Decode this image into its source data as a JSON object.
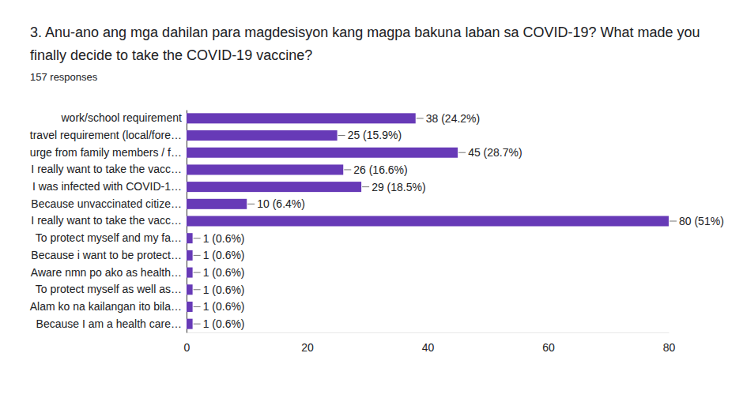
{
  "chart_data": {
    "type": "bar",
    "orientation": "horizontal",
    "title": "3. Anu-ano ang mga dahilan para magdesisyon kang magpa bakuna laban sa COVID-19? What made you finally decide to take the COVID-19 vaccine?",
    "subtitle": "157 responses",
    "categories": [
      "work/school requirement",
      "travel requirement (local/fore…",
      "urge from family members / f…",
      "I really want to take the vacc…",
      "I was infected with COVID-1…",
      "Because unvaccinated citize…",
      "I really want to take the vacc…",
      "To protect myself and my fa…",
      "Because i want to be protect…",
      "Aware nmn po ako as health…",
      "To protect myself as well as…",
      "Alam ko na kailangan ito bila…",
      "Because I am a health care…"
    ],
    "values": [
      38,
      25,
      45,
      26,
      29,
      10,
      80,
      1,
      1,
      1,
      1,
      1,
      1
    ],
    "value_labels": [
      "38 (24.2%)",
      "25 (15.9%)",
      "45 (28.7%)",
      "26 (16.6%)",
      "29 (18.5%)",
      "10 (6.4%)",
      "80 (51%)",
      "1 (0.6%)",
      "1 (0.6%)",
      "1 (0.6%)",
      "1 (0.6%)",
      "1 (0.6%)",
      "1 (0.6%)"
    ],
    "color": "#673ab7",
    "xlim": [
      0,
      80
    ],
    "xticks": [
      0,
      20,
      40,
      60,
      80
    ],
    "grid": false,
    "data_labels": true
  }
}
